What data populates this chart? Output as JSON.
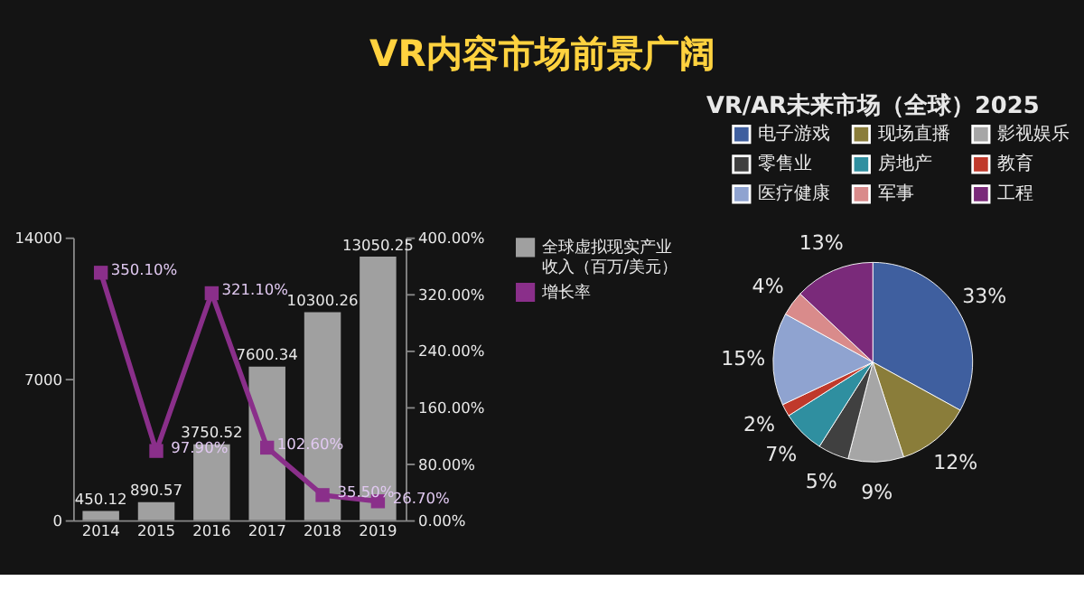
{
  "chart_data": [
    {
      "type": "bar",
      "title": "VR内容市场前景广阔",
      "categories": [
        "2014",
        "2015",
        "2016",
        "2017",
        "2018",
        "2019"
      ],
      "series": [
        {
          "name": "全球虚拟现实产业收入（百万/美元）",
          "color": "#a0a0a0",
          "values": [
            450.12,
            890.57,
            3750.52,
            7600.34,
            10300.26,
            13050.25
          ],
          "value_labels": [
            "450.12",
            "890.57",
            "3750.52",
            "7600.34",
            "10300.26",
            "13050.25"
          ]
        },
        {
          "name": "增长率",
          "type": "line",
          "axis": "y2",
          "color": "#8a2f8a",
          "values": [
            350.1,
            97.9,
            321.1,
            102.6,
            35.5,
            26.7
          ],
          "value_labels": [
            "350.10%",
            "97.90%",
            "321.10%",
            "102.60%",
            "35.50%",
            "26.70%"
          ]
        }
      ],
      "ylim": [
        0,
        14000
      ],
      "yticks": [
        0,
        7000,
        14000
      ],
      "y2lim": [
        0,
        400
      ],
      "y2ticks": [
        {
          "value": 0,
          "label": "0.00%"
        },
        {
          "value": 80,
          "label": "80.00%"
        },
        {
          "value": 160,
          "label": "160.00%"
        },
        {
          "value": 240,
          "label": "240.00%"
        },
        {
          "value": 320,
          "label": "320.00%"
        },
        {
          "value": 400,
          "label": "400.00%"
        }
      ],
      "legend": "right",
      "marker": "square",
      "line_style": "solid",
      "grid": false
    },
    {
      "type": "pie",
      "title": "VR/AR未来市场（全球）2025",
      "categories": [
        "电子游戏",
        "现场直播",
        "影视娱乐",
        "零售业",
        "房地产",
        "教育",
        "医疗健康",
        "军事",
        "工程"
      ],
      "values": [
        33,
        12,
        9,
        5,
        7,
        2,
        15,
        4,
        13
      ],
      "colors": [
        "#3f5f9f",
        "#8a7d3a",
        "#a6a6a6",
        "#404040",
        "#2f8fa0",
        "#c0392b",
        "#8fa3d0",
        "#d98b8b",
        "#7a2a7a"
      ],
      "value_labels": [
        "33%",
        "12%",
        "9%",
        "5%",
        "7%",
        "2%",
        "15%",
        "4%",
        "13%"
      ],
      "legend": "top"
    }
  ]
}
